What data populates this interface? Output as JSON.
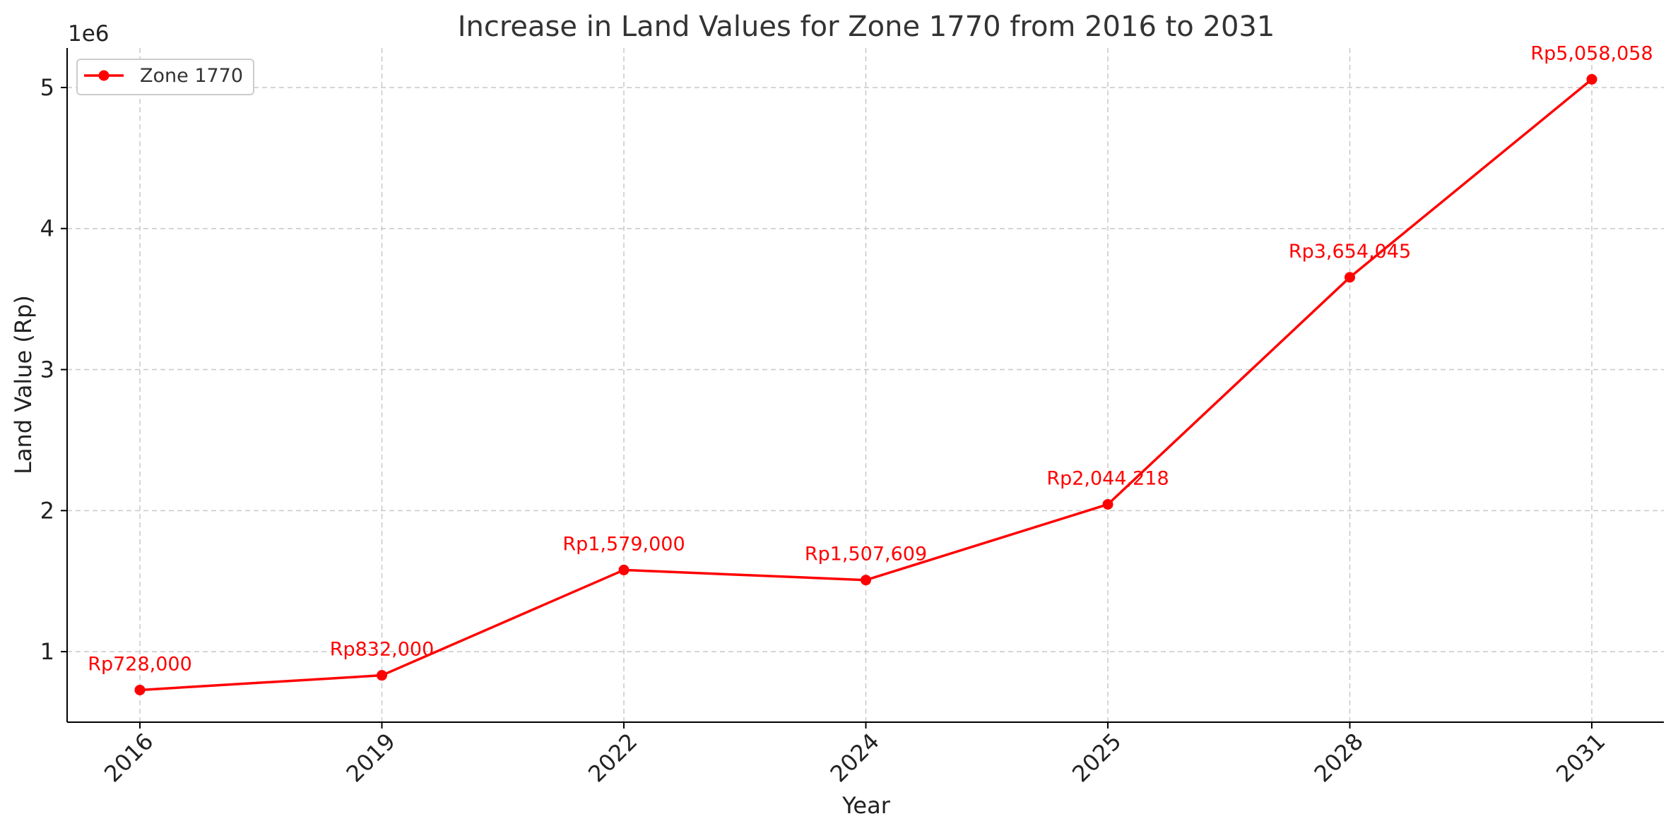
{
  "chart_data": {
    "type": "line",
    "title": "Increase in Land Values for Zone 1770 from 2016 to 2031",
    "xlabel": "Year",
    "ylabel": "Land Value (Rp)",
    "y_offset_label": "1e6",
    "categories": [
      "2016",
      "2019",
      "2022",
      "2024",
      "2025",
      "2028",
      "2031"
    ],
    "series": [
      {
        "name": "Zone 1770",
        "color": "#ff0000",
        "values": [
          728000,
          832000,
          1579000,
          1507609,
          2044218,
          3654045,
          5058058
        ],
        "labels": [
          "Rp728,000",
          "Rp832,000",
          "Rp1,579,000",
          "Rp1,507,609",
          "Rp2,044,218",
          "Rp3,654,045",
          "Rp5,058,058"
        ]
      }
    ],
    "yticks": [
      1,
      2,
      3,
      4,
      5
    ],
    "ylim": [
      500000,
      5280000
    ],
    "grid": true,
    "legend_position": "top-left"
  }
}
